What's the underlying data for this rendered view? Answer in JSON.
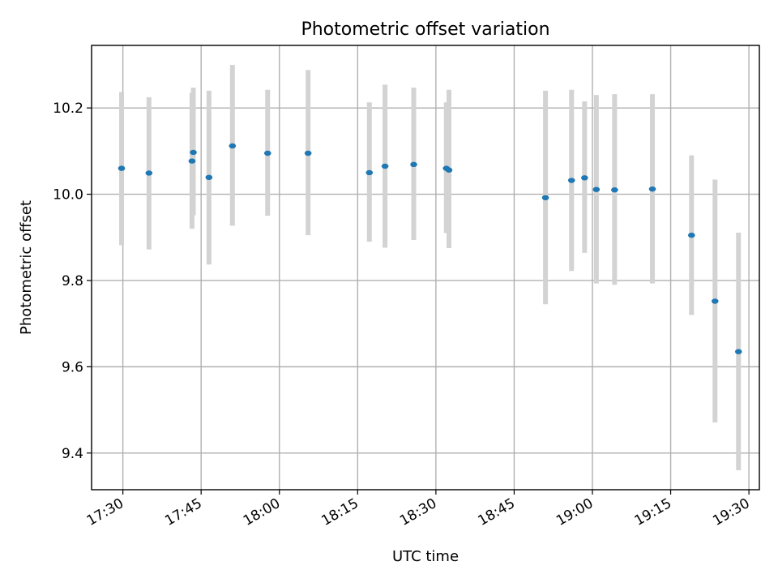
{
  "chart_data": {
    "type": "scatter",
    "title": "Photometric offset variation",
    "xlabel": "UTC time",
    "ylabel": "Photometric offset",
    "x_ticks": [
      "17:30",
      "17:45",
      "18:00",
      "18:15",
      "18:30",
      "18:45",
      "19:00",
      "19:15",
      "19:30"
    ],
    "y_ticks": [
      "9.4",
      "9.6",
      "9.8",
      "10.0",
      "10.2"
    ],
    "xlim": [
      "17:24",
      "19:32"
    ],
    "ylim": [
      9.315,
      10.345
    ],
    "grid": true,
    "colors": {
      "point": "#1f77b4",
      "errorbar": "#d3d3d3",
      "grid": "#b0b0b0"
    },
    "points": [
      {
        "time": "17:29:45",
        "y": 10.06,
        "lower": 9.882,
        "upper": 10.237
      },
      {
        "time": "17:35:00",
        "y": 10.049,
        "lower": 9.872,
        "upper": 10.225
      },
      {
        "time": "17:43:15",
        "y": 10.077,
        "lower": 9.92,
        "upper": 10.235
      },
      {
        "time": "17:43:30",
        "y": 10.097,
        "lower": 9.951,
        "upper": 10.247
      },
      {
        "time": "17:46:30",
        "y": 10.039,
        "lower": 9.837,
        "upper": 10.24
      },
      {
        "time": "17:51:00",
        "y": 10.112,
        "lower": 9.927,
        "upper": 10.3
      },
      {
        "time": "17:57:45",
        "y": 10.095,
        "lower": 9.95,
        "upper": 10.242
      },
      {
        "time": "18:05:30",
        "y": 10.095,
        "lower": 9.905,
        "upper": 10.288
      },
      {
        "time": "18:17:15",
        "y": 10.05,
        "lower": 9.89,
        "upper": 10.213
      },
      {
        "time": "18:20:15",
        "y": 10.065,
        "lower": 9.876,
        "upper": 10.254
      },
      {
        "time": "18:25:45",
        "y": 10.069,
        "lower": 9.894,
        "upper": 10.247
      },
      {
        "time": "18:32:00",
        "y": 10.06,
        "lower": 9.91,
        "upper": 10.213
      },
      {
        "time": "18:32:30",
        "y": 10.056,
        "lower": 9.875,
        "upper": 10.242
      },
      {
        "time": "18:51:00",
        "y": 9.992,
        "lower": 9.745,
        "upper": 10.24
      },
      {
        "time": "18:56:00",
        "y": 10.032,
        "lower": 9.822,
        "upper": 10.242
      },
      {
        "time": "18:58:30",
        "y": 10.038,
        "lower": 9.864,
        "upper": 10.215
      },
      {
        "time": "19:00:45",
        "y": 10.011,
        "lower": 9.793,
        "upper": 10.23
      },
      {
        "time": "19:04:15",
        "y": 10.01,
        "lower": 9.79,
        "upper": 10.232
      },
      {
        "time": "19:11:30",
        "y": 10.012,
        "lower": 9.793,
        "upper": 10.232
      },
      {
        "time": "19:19:00",
        "y": 9.905,
        "lower": 9.72,
        "upper": 10.09
      },
      {
        "time": "19:23:30",
        "y": 9.752,
        "lower": 9.471,
        "upper": 10.034
      },
      {
        "time": "19:28:00",
        "y": 9.635,
        "lower": 9.36,
        "upper": 9.911
      }
    ]
  }
}
